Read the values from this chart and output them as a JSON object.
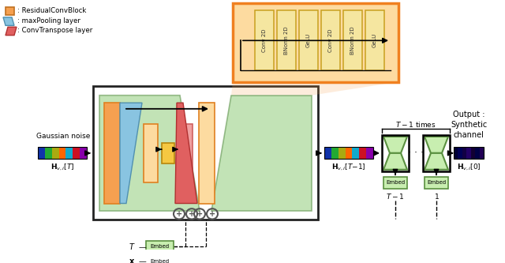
{
  "legend_orange_label": ": ResidualConvBlock",
  "legend_blue_label": ": maxPooling layer",
  "legend_red_label": ": ConvTranspose layer",
  "res_block_layers": [
    "Conv 2D",
    "BNorm 2D",
    "GeLU",
    "Conv 2D",
    "BNorm 2D",
    "GeLU"
  ],
  "orange": "#F5A050",
  "orange_light": "#FDDBA0",
  "orange_border": "#E08020",
  "blue_pool": "#89C4E1",
  "blue_pool_border": "#5090B0",
  "pink_decode": "#F0A0A0",
  "pink_decode_border": "#D06060",
  "red_transpose": "#E06060",
  "red_transpose_border": "#B03030",
  "yellow": "#F5C842",
  "yellow_border": "#B8860B",
  "green_fill": "#A8D898",
  "green_alpha": 0.7,
  "green_border": "#70A060",
  "embed_fill": "#C8EEB0",
  "embed_border": "#5A9040",
  "hourglass_fill": "#C8EEB0",
  "hourglass_border": "#5A9040",
  "box_border": "#333333",
  "channel_colors_noisy": [
    "#1133AA",
    "#22AA33",
    "#AAAA11",
    "#FF6600",
    "#11AACC",
    "#CC1122",
    "#8800AA"
  ],
  "channel_colors_output": [
    "#000033",
    "#000055",
    "#110044",
    "#220066",
    "#110033",
    "#000044",
    "#220055"
  ]
}
